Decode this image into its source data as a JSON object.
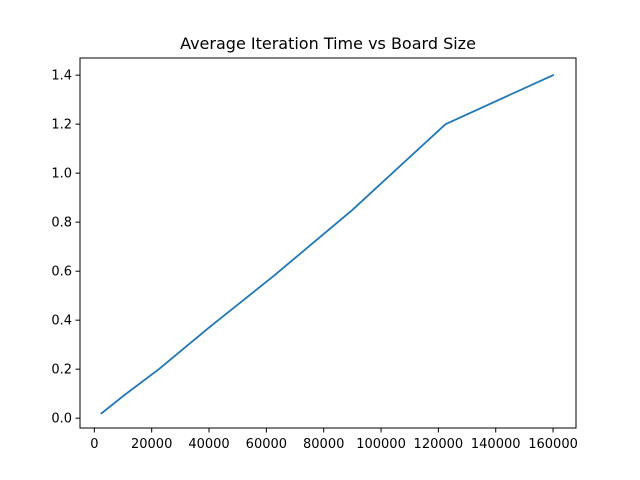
{
  "chart_data": {
    "type": "line",
    "title": "Average Iteration Time vs Board Size",
    "xlabel": "",
    "ylabel": "",
    "xlim": [
      -5000,
      168000
    ],
    "ylim": [
      -0.04,
      1.47
    ],
    "xticks": [
      0,
      20000,
      40000,
      60000,
      80000,
      100000,
      120000,
      140000,
      160000
    ],
    "yticks": [
      0.0,
      0.2,
      0.4,
      0.6,
      0.8,
      1.0,
      1.2,
      1.4
    ],
    "xtick_labels": [
      "0",
      "20000",
      "40000",
      "60000",
      "80000",
      "100000",
      "120000",
      "140000",
      "160000"
    ],
    "ytick_labels": [
      "0.0",
      "0.2",
      "0.4",
      "0.6",
      "0.8",
      "1.0",
      "1.2",
      "1.4"
    ],
    "grid": false,
    "legend": "none",
    "series": [
      {
        "color": "#1f77b4",
        "x": [
          2500,
          10000,
          22500,
          40000,
          62500,
          90000,
          122500,
          160000
        ],
        "y": [
          0.02,
          0.09,
          0.2,
          0.37,
          0.58,
          0.85,
          1.2,
          1.4
        ]
      }
    ]
  }
}
